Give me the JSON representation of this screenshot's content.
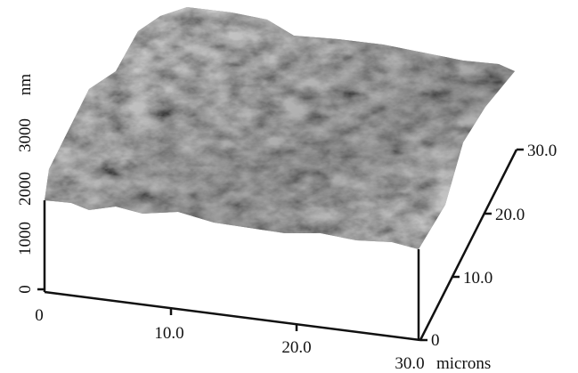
{
  "x_axis": {
    "ticks": [
      "0",
      "10.0",
      "20.0",
      "30.0"
    ],
    "unit": "microns"
  },
  "y_axis": {
    "ticks": [
      "0",
      "10.0",
      "20.0",
      "30.0"
    ]
  },
  "z_axis": {
    "ticks": [
      "0",
      "1000",
      "2000",
      "3000"
    ],
    "unit": "nm"
  }
}
